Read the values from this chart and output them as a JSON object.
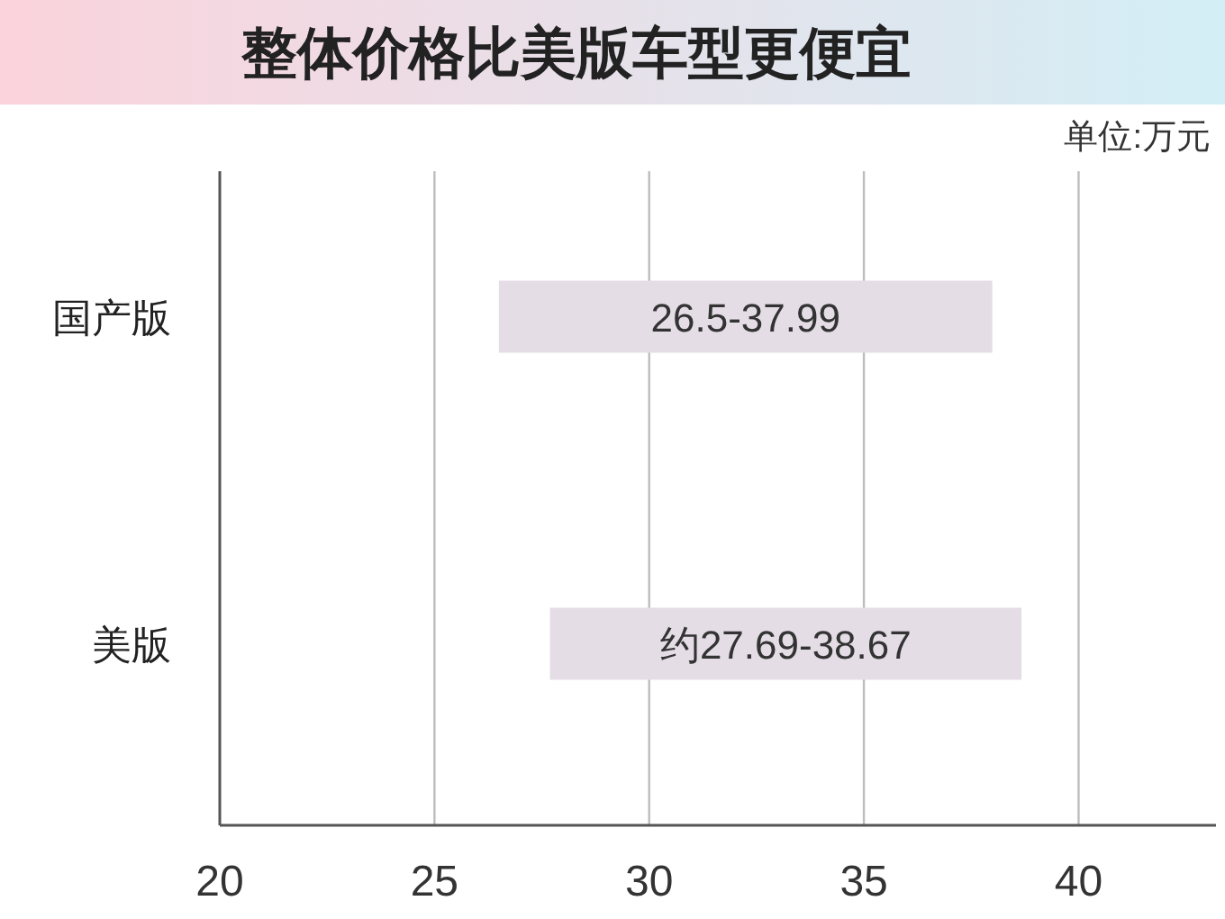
{
  "chart_data": {
    "type": "bar",
    "orientation": "horizontal",
    "title": "整体价格比美版车型更便宜",
    "annotations": [
      "单位:万元"
    ],
    "categories": [
      "国产版",
      "美版"
    ],
    "series": [
      {
        "color": "#e4dde6",
        "base": [
          26.5,
          27.69
        ],
        "values": [
          11.49,
          10.98
        ],
        "value_labels": [
          "26.5-37.99",
          "约27.69-38.67"
        ]
      }
    ],
    "xlim": [
      20,
      43.2
    ],
    "xticks": [
      20,
      25,
      30,
      35,
      40
    ],
    "grid": "x"
  }
}
